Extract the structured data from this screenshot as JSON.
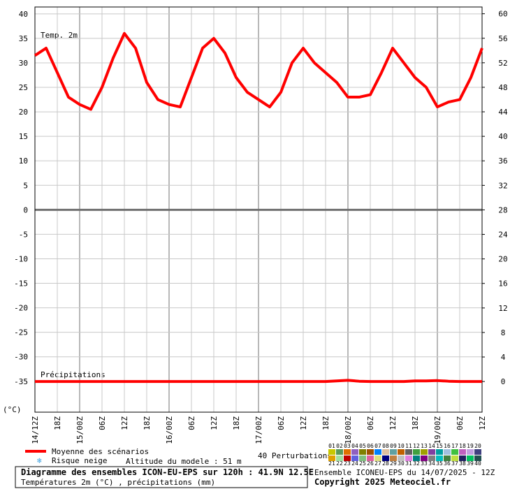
{
  "chart_data": {
    "type": "line",
    "title": "Diagramme des ensembles ICON-EU-EPS sur 120h : 41.9N 12.5E",
    "subtitle": "Températures 2m (°C) , précipitations (mm)",
    "y_label": "(°C)",
    "temp_label": "Temp. 2m",
    "precip_label": "Précipitations",
    "x": [
      0,
      3,
      6,
      9,
      12,
      15,
      18,
      21,
      24,
      27,
      30,
      33,
      36,
      39,
      42,
      45,
      48,
      51,
      54,
      57,
      60,
      63,
      66,
      69,
      72,
      75,
      78,
      81,
      84,
      87,
      90,
      93,
      96,
      99,
      102,
      105,
      108,
      111,
      114,
      117,
      120
    ],
    "xlim": [
      0,
      120
    ],
    "xticks": [
      {
        "value": 0,
        "label": "14/12Z"
      },
      {
        "value": 6,
        "label": "18Z"
      },
      {
        "value": 12,
        "label": "15/00Z"
      },
      {
        "value": 18,
        "label": "06Z"
      },
      {
        "value": 24,
        "label": "12Z"
      },
      {
        "value": 30,
        "label": "18Z"
      },
      {
        "value": 36,
        "label": "16/00Z"
      },
      {
        "value": 42,
        "label": "06Z"
      },
      {
        "value": 48,
        "label": "12Z"
      },
      {
        "value": 54,
        "label": "18Z"
      },
      {
        "value": 60,
        "label": "17/00Z"
      },
      {
        "value": 66,
        "label": "06Z"
      },
      {
        "value": 72,
        "label": "12Z"
      },
      {
        "value": 78,
        "label": "18Z"
      },
      {
        "value": 84,
        "label": "18/00Z"
      },
      {
        "value": 90,
        "label": "06Z"
      },
      {
        "value": 96,
        "label": "12Z"
      },
      {
        "value": 102,
        "label": "18Z"
      },
      {
        "value": 108,
        "label": "19/00Z"
      },
      {
        "value": 114,
        "label": "06Z"
      },
      {
        "value": 120,
        "label": "12Z"
      }
    ],
    "ylim": [
      -41.3,
      41.4
    ],
    "yticks": [
      40,
      35,
      30,
      25,
      20,
      15,
      10,
      5,
      0,
      -5,
      -10,
      -15,
      -20,
      -25,
      -30,
      -35
    ],
    "y2lim": [
      -5.0,
      61.1
    ],
    "y2ticks": [
      60,
      56,
      52,
      48,
      44,
      40,
      36,
      32,
      28,
      24,
      20,
      16,
      12,
      8,
      4,
      0
    ],
    "grid": true,
    "series": [
      {
        "name": "Moyenne des scénarios",
        "color": "#ff0000",
        "values": [
          31.5,
          33,
          28,
          23,
          21.5,
          20.5,
          25,
          31,
          36,
          33,
          26,
          22.5,
          21.5,
          21,
          27,
          33,
          35,
          32,
          27,
          24,
          22.5,
          21,
          24,
          30,
          33,
          30,
          28,
          26,
          23,
          23,
          23.5,
          28,
          33,
          30,
          27,
          25,
          21,
          22,
          22.5,
          27,
          33
        ]
      },
      {
        "axis": "y2",
        "color": "#ff0000",
        "values": [
          0,
          0,
          0,
          0,
          0,
          0,
          0,
          0,
          0,
          0,
          0,
          0,
          0,
          0,
          0,
          0,
          0,
          0,
          0,
          0,
          0,
          0,
          0,
          0,
          0,
          0,
          0,
          0.1,
          0.2,
          0.05,
          0,
          0,
          0,
          0,
          0.1,
          0.1,
          0.15,
          0.05,
          0,
          0,
          0
        ]
      }
    ],
    "snow_risk": "Risque neige",
    "altitude": "Altitude du modele : 51 m",
    "perturbations": {
      "title": "40 Perturbations",
      "members": [
        {
          "label": "01",
          "color": "#c8c800"
        },
        {
          "label": "02",
          "color": "#5a9a5a"
        },
        {
          "label": "03",
          "color": "#e07000"
        },
        {
          "label": "04",
          "color": "#9060c0"
        },
        {
          "label": "05",
          "color": "#808000"
        },
        {
          "label": "06",
          "color": "#a05000"
        },
        {
          "label": "07",
          "color": "#0080ff"
        },
        {
          "label": "08",
          "color": "#e0c0a0"
        },
        {
          "label": "09",
          "color": "#60a0a0"
        },
        {
          "label": "10",
          "color": "#c06000"
        },
        {
          "label": "11",
          "color": "#606060"
        },
        {
          "label": "12",
          "color": "#40a040"
        },
        {
          "label": "13",
          "color": "#a0a000"
        },
        {
          "label": "14",
          "color": "#8040a0"
        },
        {
          "label": "15",
          "color": "#00a0a0"
        },
        {
          "label": "16",
          "color": "#a0c0e0"
        },
        {
          "label": "17",
          "color": "#40c040"
        },
        {
          "label": "18",
          "color": "#c060c0"
        },
        {
          "label": "19",
          "color": "#c0a0e0"
        },
        {
          "label": "20",
          "color": "#404080"
        },
        {
          "label": "21",
          "color": "#e0a000"
        },
        {
          "label": "22",
          "color": "#a0e0a0"
        },
        {
          "label": "23",
          "color": "#c00000"
        },
        {
          "label": "24",
          "color": "#6060e0"
        },
        {
          "label": "25",
          "color": "#80c080"
        },
        {
          "label": "26",
          "color": "#e060a0"
        },
        {
          "label": "27",
          "color": "#e0e080"
        },
        {
          "label": "28",
          "color": "#000080"
        },
        {
          "label": "29",
          "color": "#c08040"
        },
        {
          "label": "30",
          "color": "#c0c0c0"
        },
        {
          "label": "31",
          "color": "#e080e0"
        },
        {
          "label": "32",
          "color": "#008080"
        },
        {
          "label": "33",
          "color": "#800080"
        },
        {
          "label": "34",
          "color": "#808080"
        },
        {
          "label": "35",
          "color": "#00c0c0"
        },
        {
          "label": "36",
          "color": "#408040"
        },
        {
          "label": "37",
          "color": "#c0e040"
        },
        {
          "label": "38",
          "color": "#202060"
        },
        {
          "label": "39",
          "color": "#00c060"
        },
        {
          "label": "40",
          "color": "#205050"
        }
      ]
    },
    "run": "Ensemble ICONEU-EPS du 14/07/2025 - 12Z",
    "copyright": "Copyright 2025 Meteociel.fr"
  }
}
